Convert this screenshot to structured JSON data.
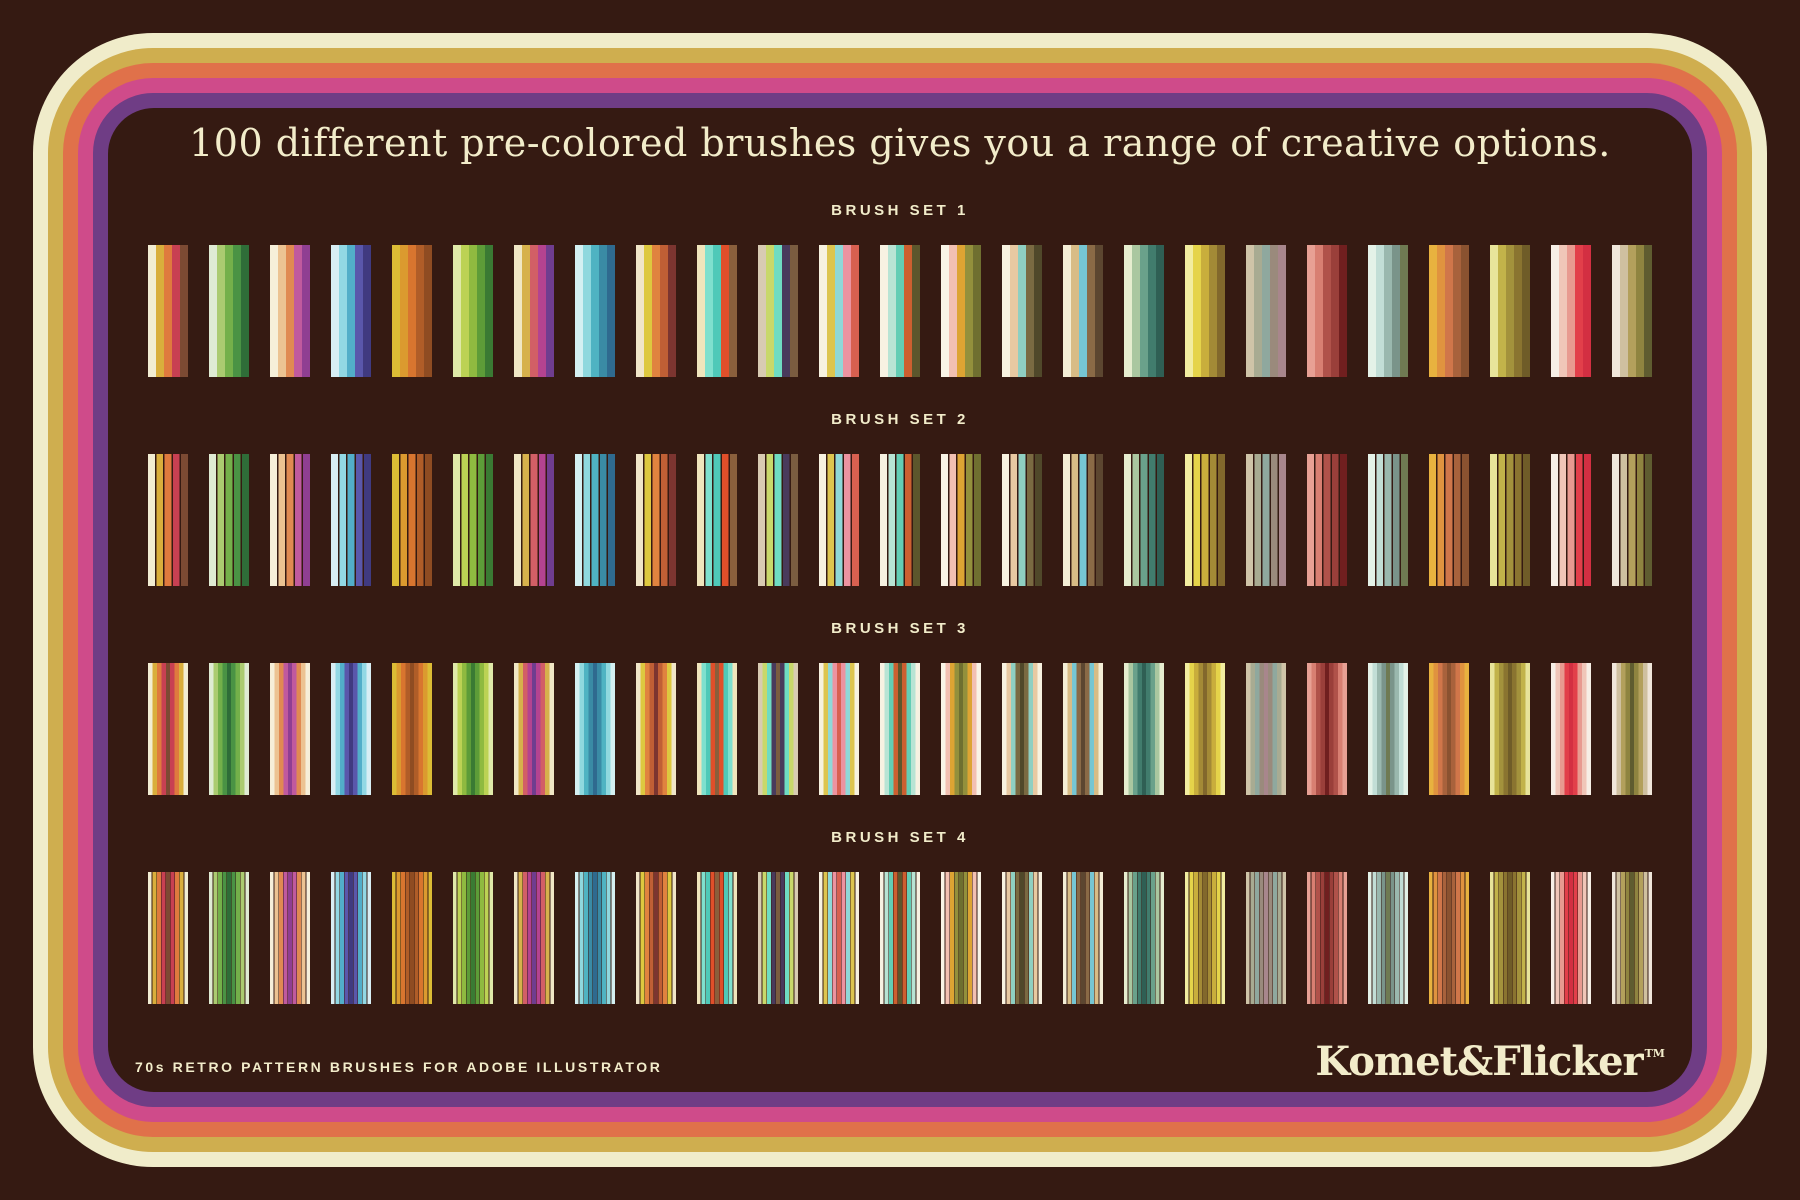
{
  "poster": {
    "title": "100 different pre-colored brushes gives you a range of creative options.",
    "footer_note": "70s RETRO PATTERN BRUSHES FOR ADOBE ILLUSTRATOR",
    "brand": "Komet&Flicker",
    "brand_tm": "TM"
  },
  "sets": [
    {
      "label": "BRUSH SET 1",
      "style": "solid"
    },
    {
      "label": "BRUSH SET 2",
      "style": "gapped"
    },
    {
      "label": "BRUSH SET 3",
      "style": "mirrored"
    },
    {
      "label": "BRUSH SET 4",
      "style": "mirrored-gapped"
    }
  ],
  "colors": {
    "bg": "#351a12",
    "panel": "#351a12",
    "text": "#f2ecca",
    "ring_cream": "#f0ecca",
    "ring_gold": "#cfae4f",
    "ring_orange": "#e0714a",
    "ring_magenta": "#cf4b8a",
    "ring_purple": "#6f3d85"
  },
  "palettes": [
    [
      "#f2edd3",
      "#d9ae3c",
      "#df7a3e",
      "#c84052",
      "#7c4a33"
    ],
    [
      "#dfebd3",
      "#abcb70",
      "#74b04a",
      "#4a9344",
      "#2f6d38"
    ],
    [
      "#f6efd9",
      "#ecc392",
      "#e08a52",
      "#c05a9e",
      "#8f3f92"
    ],
    [
      "#d8eef4",
      "#92d8e4",
      "#52aec9",
      "#5a57ab",
      "#403a80"
    ],
    [
      "#dcbc35",
      "#db9a2f",
      "#d8752f",
      "#b05d28",
      "#8f4c22"
    ],
    [
      "#dfe9a8",
      "#bcd254",
      "#8fba40",
      "#5d9c38",
      "#3a7a33"
    ],
    [
      "#f0e7c5",
      "#d6b14c",
      "#d25f66",
      "#b44390",
      "#6f3d8f"
    ],
    [
      "#d4f0f2",
      "#8fd8de",
      "#4fb3c2",
      "#3a8ba5",
      "#2f6a8f"
    ],
    [
      "#f0e5c8",
      "#ddc83f",
      "#e0833f",
      "#c05f35",
      "#7c3530"
    ],
    [
      "#f0e5bc",
      "#7fe0ce",
      "#4fc9b8",
      "#e04f2a",
      "#8a5f3c"
    ],
    [
      "#d8cbb2",
      "#c8d86a",
      "#6fdcc2",
      "#493a5c",
      "#7a5c40"
    ],
    [
      "#f7f2e0",
      "#ddc54f",
      "#8fd8d8",
      "#ec93a0",
      "#d86050"
    ],
    [
      "#f7f2e2",
      "#b8e4d4",
      "#63cdb4",
      "#cc5f30",
      "#5c562c"
    ],
    [
      "#f9f4e6",
      "#f2c0b2",
      "#dda433",
      "#93903c",
      "#6f6f30"
    ],
    [
      "#f8f2e0",
      "#e8c9a2",
      "#8fcfc2",
      "#7a6a42",
      "#50482a"
    ],
    [
      "#f4eed6",
      "#d8bc86",
      "#76c6d3",
      "#8a6a46",
      "#5c4630"
    ],
    [
      "#e6edcf",
      "#aac7a0",
      "#6aa18b",
      "#417c6d",
      "#2f5f54"
    ],
    [
      "#f2eda0",
      "#e5d44a",
      "#c9ae3c",
      "#a38a36",
      "#82682c"
    ],
    [
      "#cfc4a8",
      "#a8ab92",
      "#8fa89e",
      "#9a8a7c",
      "#a8868c"
    ],
    [
      "#e8a094",
      "#d87f72",
      "#b0524a",
      "#9a3f3a",
      "#701f1f"
    ],
    [
      "#e4f2e8",
      "#c2ded6",
      "#9ab8ae",
      "#7a948a",
      "#6f7a52"
    ],
    [
      "#e8b23f",
      "#e0933f",
      "#d0764a",
      "#a8623c",
      "#8a5230"
    ],
    [
      "#e8e49a",
      "#c2b34a",
      "#a3923c",
      "#8a7430",
      "#6f5c28"
    ],
    [
      "#f7efe6",
      "#f0c6b8",
      "#e89a90",
      "#e23f4a",
      "#d32f42"
    ],
    [
      "#f0e6da",
      "#cfc0a0",
      "#b3a05c",
      "#8f8440",
      "#5f5c30"
    ]
  ]
}
